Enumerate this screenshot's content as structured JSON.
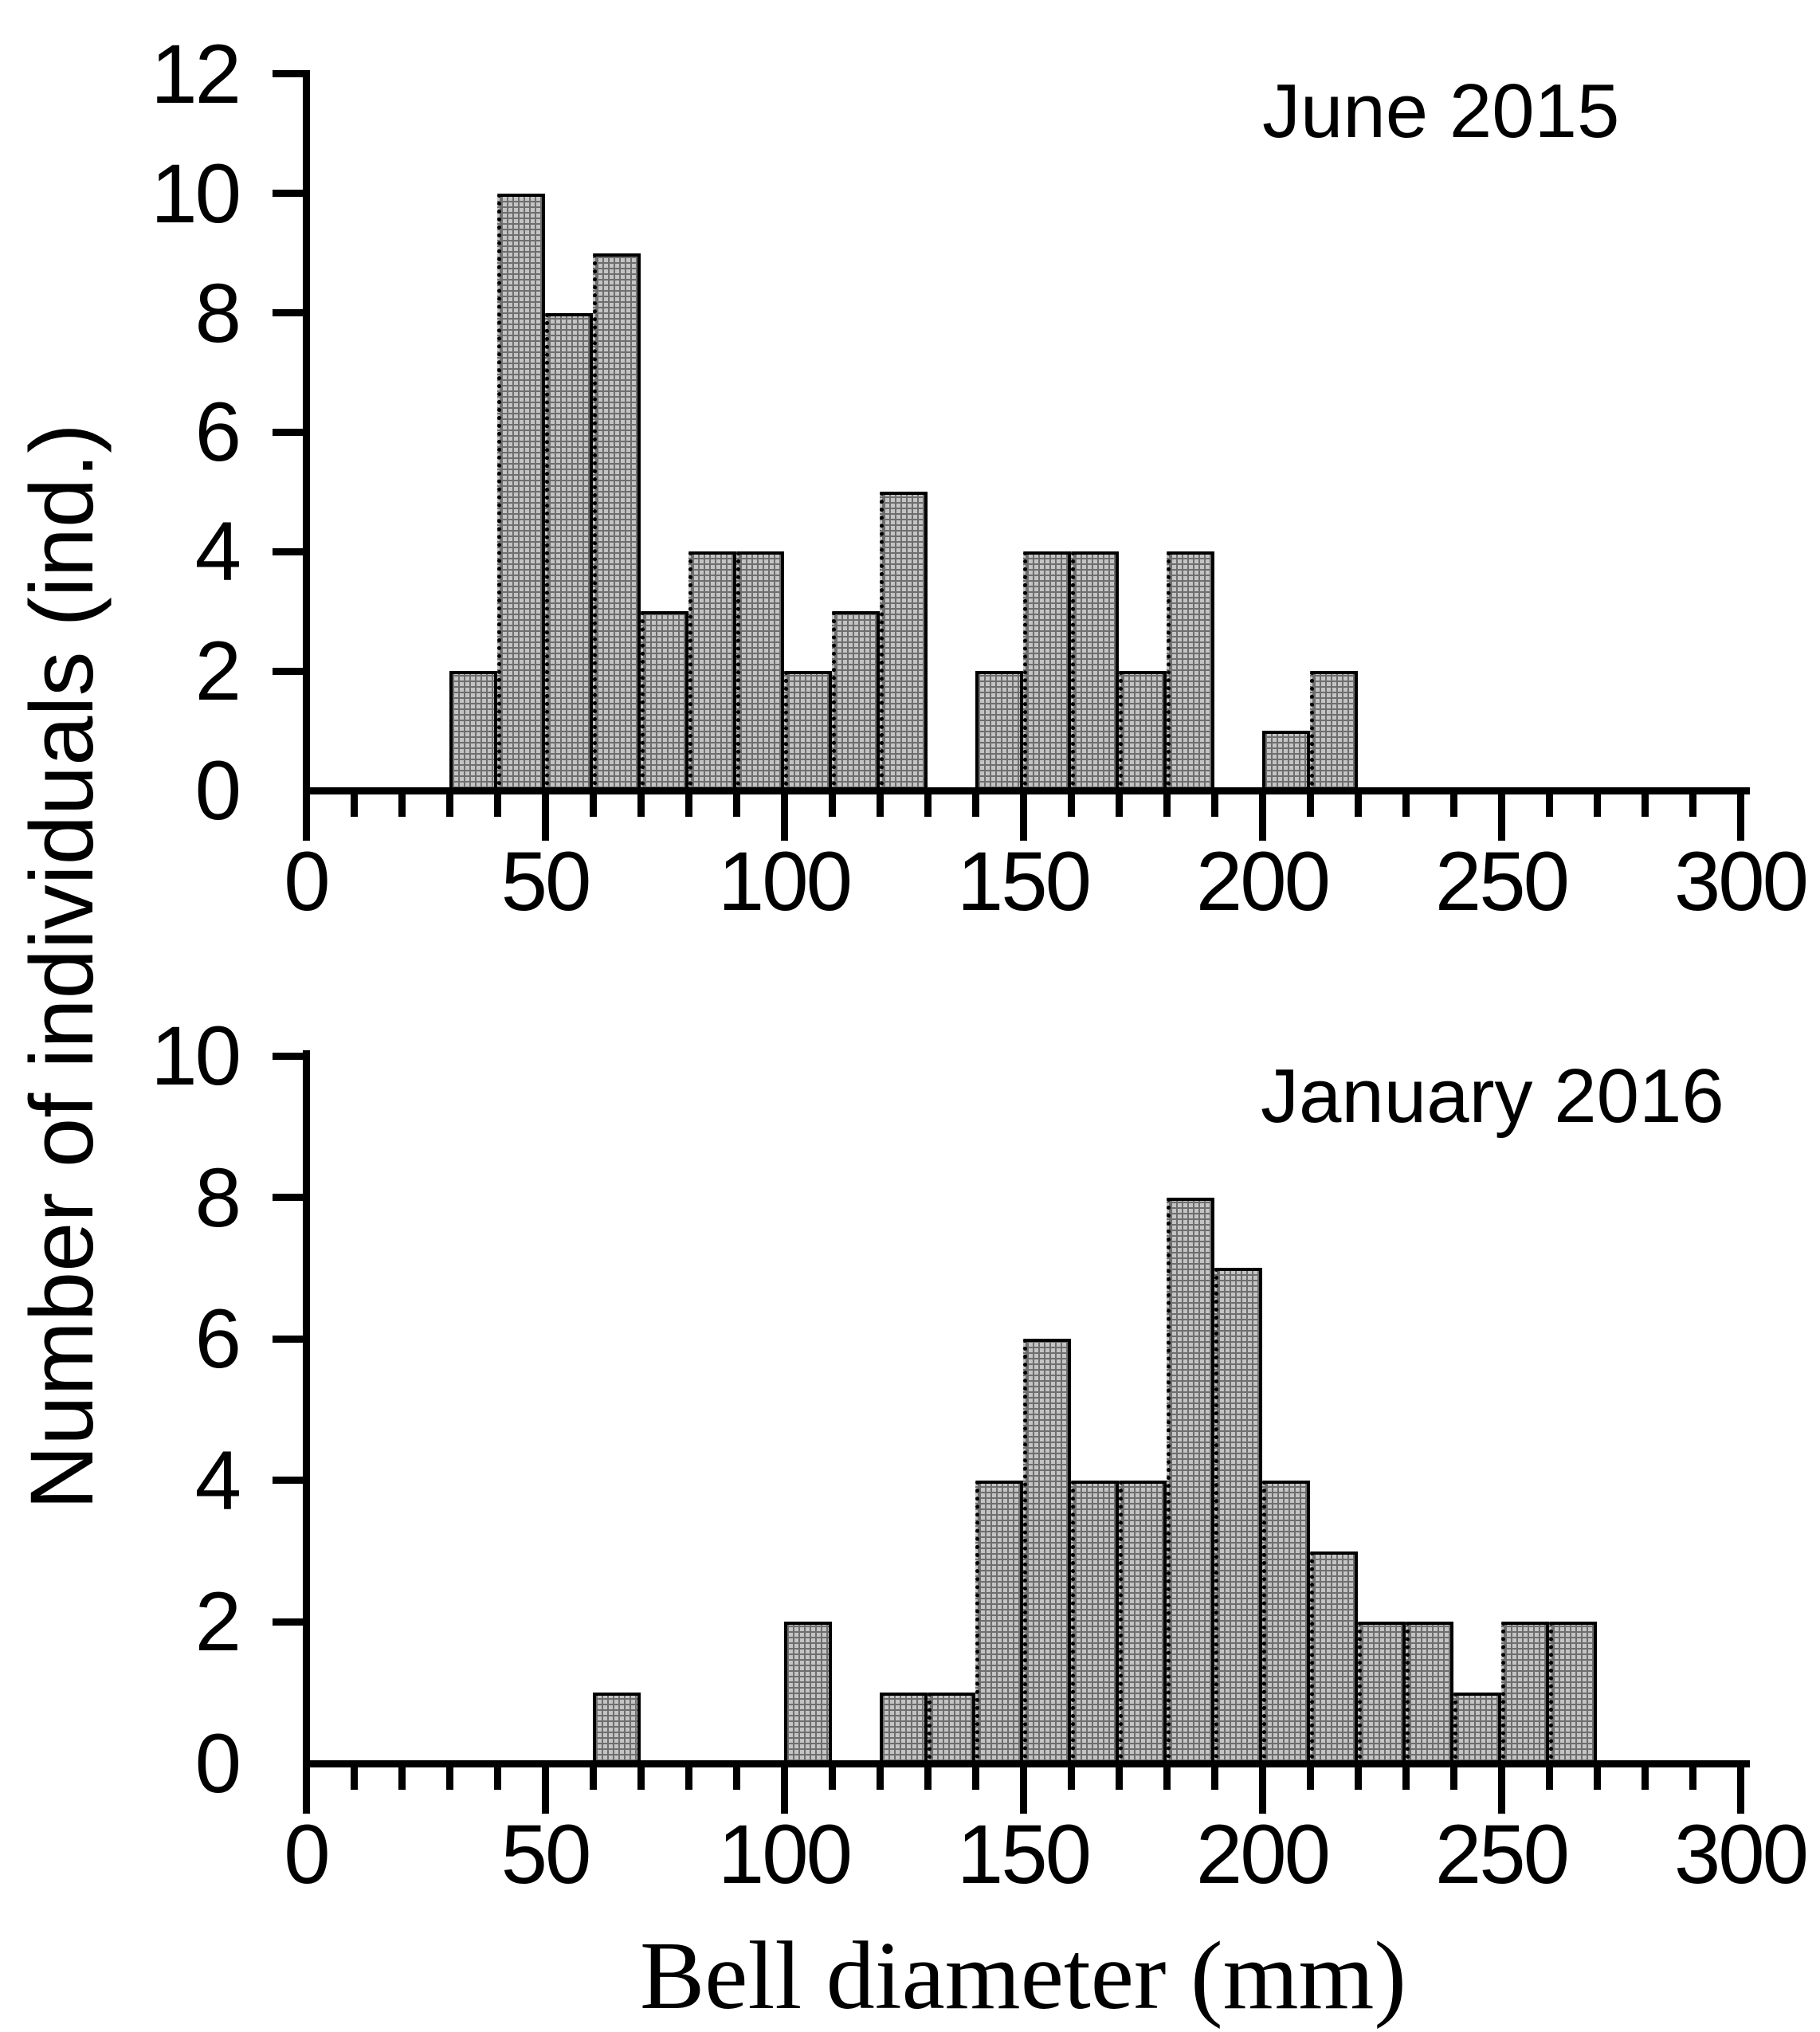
{
  "figure": {
    "x_axis_title": "Bell diameter (mm)",
    "y_axis_title": "Number of individuals (ind.)",
    "background": "#ffffff"
  },
  "colors": {
    "bar_fill_base": "#c4c4c4",
    "bar_fill_lattice": "#6e6e6e",
    "outline": "#000000",
    "text": "#000000"
  },
  "chart_data": [
    {
      "type": "bar",
      "title": "June 2015",
      "xlabel": "Bell diameter (mm)",
      "ylabel": "Number of individuals (ind.)",
      "bin_width_mm": 10,
      "bins_start_mm": [
        30,
        40,
        50,
        60,
        70,
        80,
        90,
        100,
        110,
        120,
        140,
        150,
        160,
        170,
        180,
        200,
        210
      ],
      "values": [
        2,
        10,
        8,
        9,
        3,
        4,
        4,
        2,
        3,
        5,
        2,
        4,
        4,
        2,
        4,
        1,
        2
      ],
      "xlim": [
        0,
        300
      ],
      "ylim": [
        0,
        12
      ],
      "x_ticks_major": [
        0,
        50,
        100,
        150,
        200,
        250,
        300
      ],
      "x_tick_labels": [
        "0",
        "50",
        "100",
        "150",
        "200",
        "250",
        "300"
      ],
      "x_tick_minor_step": 10,
      "y_ticks": [
        0,
        2,
        4,
        6,
        8,
        10,
        12
      ],
      "y_tick_labels": [
        "0",
        "2",
        "4",
        "6",
        "8",
        "10",
        "12"
      ],
      "grid": false,
      "legend": null
    },
    {
      "type": "bar",
      "title": "January 2016",
      "xlabel": "Bell diameter (mm)",
      "ylabel": "Number of individuals (ind.)",
      "bin_width_mm": 10,
      "bins_start_mm": [
        60,
        100,
        120,
        130,
        140,
        150,
        160,
        170,
        180,
        190,
        200,
        210,
        220,
        230,
        240,
        250,
        260
      ],
      "values": [
        1,
        2,
        1,
        1,
        4,
        6,
        4,
        4,
        8,
        7,
        4,
        3,
        2,
        2,
        1,
        2,
        2
      ],
      "xlim": [
        0,
        300
      ],
      "ylim": [
        0,
        10
      ],
      "x_ticks_major": [
        0,
        50,
        100,
        150,
        200,
        250,
        300
      ],
      "x_tick_labels": [
        "0",
        "50",
        "100",
        "150",
        "200",
        "250",
        "300"
      ],
      "x_tick_minor_step": 10,
      "y_ticks": [
        0,
        2,
        4,
        6,
        8,
        10
      ],
      "y_tick_labels": [
        "0",
        "2",
        "4",
        "6",
        "8",
        "10"
      ],
      "grid": false,
      "legend": null
    }
  ]
}
